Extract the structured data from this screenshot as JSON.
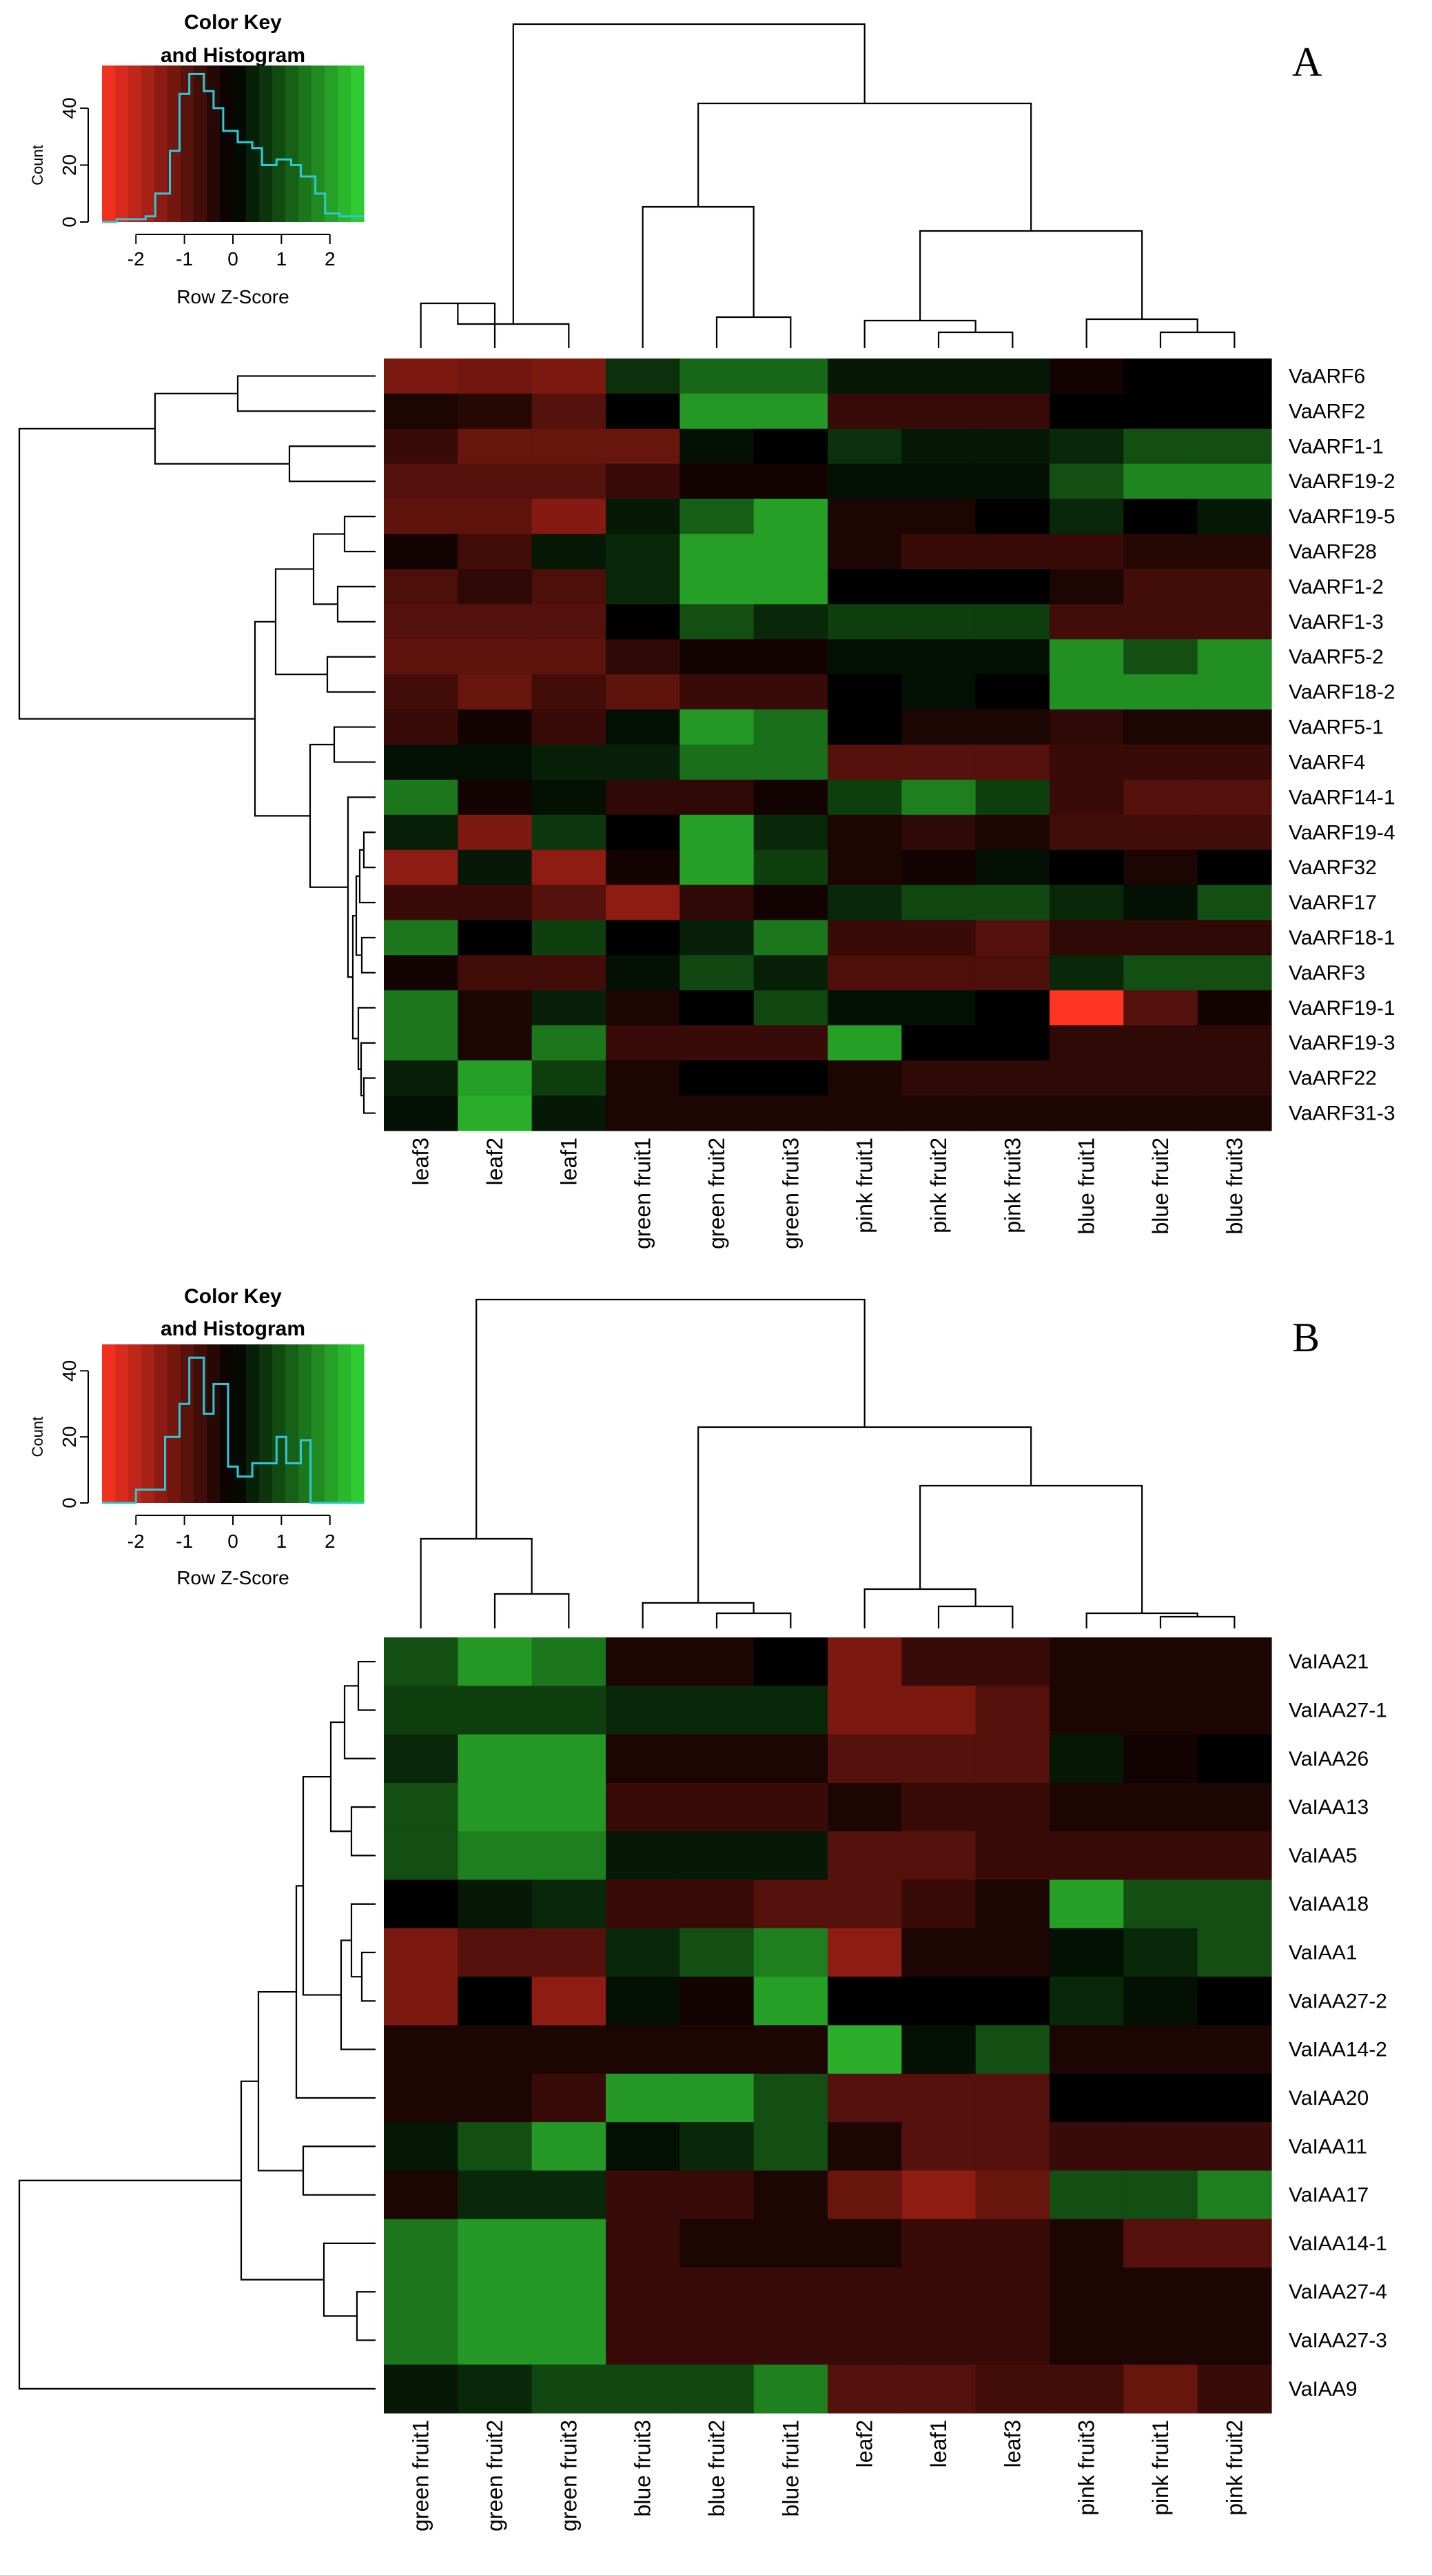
{
  "chart_data": [
    {
      "type": "heatmap",
      "panel": "A",
      "color_key": {
        "title_lines": [
          "Color Key",
          "and Histogram"
        ],
        "xlabel": "Row Z-Score",
        "ylabel": "Count",
        "x_ticks": [
          "-2",
          "-1",
          "0",
          "1",
          "2"
        ],
        "y_ticks": [
          "0",
          "20",
          "40"
        ],
        "x_range": [
          -2.7,
          2.7
        ],
        "y_range": [
          0,
          55
        ],
        "histogram": [
          [
            -2.7,
            0
          ],
          [
            -2.4,
            0
          ],
          [
            -2.4,
            1
          ],
          [
            -1.8,
            1
          ],
          [
            -1.8,
            2
          ],
          [
            -1.6,
            2
          ],
          [
            -1.6,
            10
          ],
          [
            -1.3,
            10
          ],
          [
            -1.3,
            25
          ],
          [
            -1.1,
            25
          ],
          [
            -1.1,
            45
          ],
          [
            -0.9,
            45
          ],
          [
            -0.9,
            52
          ],
          [
            -0.6,
            52
          ],
          [
            -0.6,
            46
          ],
          [
            -0.4,
            46
          ],
          [
            -0.4,
            40
          ],
          [
            -0.2,
            40
          ],
          [
            -0.2,
            32
          ],
          [
            0.1,
            32
          ],
          [
            0.1,
            28
          ],
          [
            0.4,
            28
          ],
          [
            0.4,
            26
          ],
          [
            0.6,
            26
          ],
          [
            0.6,
            20
          ],
          [
            0.9,
            20
          ],
          [
            0.9,
            22
          ],
          [
            1.2,
            22
          ],
          [
            1.2,
            20
          ],
          [
            1.4,
            20
          ],
          [
            1.4,
            16
          ],
          [
            1.7,
            16
          ],
          [
            1.7,
            10
          ],
          [
            1.9,
            10
          ],
          [
            1.9,
            3
          ],
          [
            2.2,
            3
          ],
          [
            2.2,
            2
          ],
          [
            2.7,
            2
          ]
        ]
      },
      "columns": [
        "leaf3",
        "leaf2",
        "leaf1",
        "green fruit1",
        "green fruit2",
        "green fruit3",
        "pink fruit1",
        "pink fruit2",
        "pink fruit3",
        "blue fruit1",
        "blue fruit2",
        "blue fruit3"
      ],
      "rows": [
        "VaARF6",
        "VaARF2",
        "VaARF1-1",
        "VaARF19-2",
        "VaARF19-5",
        "VaARF28",
        "VaARF1-2",
        "VaARF1-3",
        "VaARF5-2",
        "VaARF18-2",
        "VaARF5-1",
        "VaARF4",
        "VaARF14-1",
        "VaARF19-4",
        "VaARF32",
        "VaARF17",
        "VaARF18-1",
        "VaARF3",
        "VaARF19-1",
        "VaARF19-3",
        "VaARF22",
        "VaARF31-3"
      ],
      "values": [
        [
          -1.3,
          -1.2,
          -1.3,
          0.6,
          1.3,
          1.3,
          0.3,
          0.3,
          0.3,
          -0.2,
          0.0,
          0.0
        ],
        [
          -0.3,
          -0.4,
          -0.9,
          0.0,
          1.9,
          1.9,
          -0.6,
          -0.6,
          -0.6,
          0.0,
          0.0,
          0.0
        ],
        [
          -0.6,
          -1.1,
          -1.1,
          -1.1,
          0.2,
          0.0,
          0.6,
          0.3,
          0.3,
          0.5,
          1.0,
          1.0
        ],
        [
          -0.9,
          -0.9,
          -0.9,
          -0.6,
          -0.2,
          -0.2,
          0.2,
          0.2,
          0.2,
          1.0,
          1.7,
          1.7
        ],
        [
          -1.0,
          -1.0,
          -1.4,
          0.3,
          1.2,
          2.0,
          -0.3,
          -0.3,
          0.0,
          0.5,
          0.0,
          0.3
        ],
        [
          -0.2,
          -0.7,
          0.3,
          0.5,
          2.0,
          2.0,
          -0.3,
          -0.6,
          -0.6,
          -0.6,
          -0.4,
          -0.4
        ],
        [
          -0.8,
          -0.5,
          -0.8,
          0.5,
          2.0,
          2.0,
          0.0,
          0.0,
          0.0,
          -0.3,
          -0.7,
          -0.7
        ],
        [
          -0.9,
          -0.9,
          -0.9,
          0.0,
          1.0,
          0.5,
          0.8,
          0.8,
          0.8,
          -0.7,
          -0.7,
          -0.7
        ],
        [
          -1.0,
          -1.0,
          -1.0,
          -0.5,
          -0.2,
          -0.2,
          0.2,
          0.2,
          0.2,
          1.8,
          1.0,
          1.8
        ],
        [
          -0.7,
          -1.1,
          -0.7,
          -1.0,
          -0.6,
          -0.6,
          0.0,
          0.2,
          0.0,
          1.8,
          1.8,
          1.8
        ],
        [
          -0.6,
          -0.2,
          -0.6,
          0.2,
          1.9,
          1.4,
          0.0,
          -0.3,
          -0.3,
          -0.5,
          -0.3,
          -0.3
        ],
        [
          0.2,
          0.2,
          0.4,
          0.4,
          1.4,
          1.4,
          -0.9,
          -0.9,
          -0.9,
          -0.6,
          -0.6,
          -0.6
        ],
        [
          1.5,
          -0.2,
          0.2,
          -0.5,
          -0.5,
          -0.2,
          0.8,
          1.6,
          0.8,
          -0.6,
          -0.9,
          -0.9
        ],
        [
          0.4,
          -1.3,
          0.7,
          0.0,
          2.0,
          0.5,
          -0.3,
          -0.5,
          -0.3,
          -0.7,
          -0.7,
          -0.7
        ],
        [
          -1.5,
          0.3,
          -1.5,
          -0.2,
          2.0,
          0.8,
          -0.3,
          -0.2,
          0.2,
          0.0,
          -0.3,
          0.0
        ],
        [
          -0.6,
          -0.6,
          -0.9,
          -1.5,
          -0.5,
          -0.2,
          0.5,
          0.9,
          0.9,
          0.5,
          0.2,
          1.0
        ],
        [
          1.5,
          0.0,
          0.8,
          0.0,
          0.4,
          1.5,
          -0.6,
          -0.6,
          -0.9,
          -0.5,
          -0.5,
          -0.5
        ],
        [
          -0.2,
          -0.7,
          -0.7,
          0.2,
          0.9,
          0.4,
          -0.8,
          -0.8,
          -0.8,
          0.5,
          1.0,
          1.0
        ],
        [
          1.5,
          -0.3,
          0.4,
          -0.3,
          0.0,
          0.9,
          0.2,
          0.2,
          0.0,
          -2.7,
          -0.9,
          -0.2
        ],
        [
          1.5,
          -0.3,
          1.5,
          -0.6,
          -0.6,
          -0.6,
          2.0,
          0.0,
          0.0,
          -0.5,
          -0.5,
          -0.5
        ],
        [
          0.4,
          2.0,
          0.8,
          -0.3,
          0.0,
          0.0,
          -0.3,
          -0.5,
          -0.5,
          -0.5,
          -0.5,
          -0.5
        ],
        [
          0.2,
          2.2,
          0.3,
          -0.3,
          -0.3,
          -0.3,
          -0.3,
          -0.3,
          -0.3,
          -0.3,
          -0.3,
          -0.3
        ]
      ],
      "color_scale": {
        "low": "#ff3322",
        "mid": "#000000",
        "high": "#33d633",
        "range": [
          -2.7,
          2.7
        ]
      }
    },
    {
      "type": "heatmap",
      "panel": "B",
      "color_key": {
        "title_lines": [
          "Color Key",
          "and Histogram"
        ],
        "xlabel": "Row Z-Score",
        "ylabel": "Count",
        "x_ticks": [
          "-2",
          "-1",
          "0",
          "1",
          "2"
        ],
        "y_ticks": [
          "0",
          "20",
          "40"
        ],
        "x_range": [
          -2.7,
          2.7
        ],
        "y_range": [
          0,
          48
        ],
        "histogram": [
          [
            -2.7,
            0
          ],
          [
            -2.0,
            0
          ],
          [
            -2.0,
            4
          ],
          [
            -1.4,
            4
          ],
          [
            -1.4,
            20
          ],
          [
            -1.1,
            20
          ],
          [
            -1.1,
            30
          ],
          [
            -0.9,
            30
          ],
          [
            -0.9,
            44
          ],
          [
            -0.6,
            44
          ],
          [
            -0.6,
            27
          ],
          [
            -0.4,
            27
          ],
          [
            -0.4,
            36
          ],
          [
            -0.1,
            36
          ],
          [
            -0.1,
            11
          ],
          [
            0.1,
            11
          ],
          [
            0.1,
            8
          ],
          [
            0.4,
            8
          ],
          [
            0.4,
            12
          ],
          [
            0.9,
            12
          ],
          [
            0.9,
            20
          ],
          [
            1.1,
            20
          ],
          [
            1.1,
            12
          ],
          [
            1.4,
            12
          ],
          [
            1.4,
            19
          ],
          [
            1.6,
            19
          ],
          [
            1.6,
            0
          ],
          [
            2.7,
            0
          ]
        ]
      },
      "columns": [
        "green fruit1",
        "green fruit2",
        "green fruit3",
        "blue fruit3",
        "blue fruit2",
        "blue fruit1",
        "leaf2",
        "leaf1",
        "leaf3",
        "pink fruit3",
        "pink fruit1",
        "pink fruit2"
      ],
      "rows": [
        "VaIAA21",
        "VaIAA27-1",
        "VaIAA26",
        "VaIAA13",
        "VaIAA5",
        "VaIAA18",
        "VaIAA1",
        "VaIAA27-2",
        "VaIAA14-2",
        "VaIAA20",
        "VaIAA11",
        "VaIAA17",
        "VaIAA14-1",
        "VaIAA27-4",
        "VaIAA27-3",
        "VaIAA9"
      ],
      "values": [
        [
          1.0,
          1.9,
          1.5,
          -0.3,
          -0.3,
          0.0,
          -1.3,
          -0.6,
          -0.6,
          -0.3,
          -0.3,
          -0.3
        ],
        [
          0.8,
          0.8,
          0.8,
          0.5,
          0.5,
          0.5,
          -1.3,
          -1.3,
          -0.9,
          -0.3,
          -0.3,
          -0.3
        ],
        [
          0.5,
          1.9,
          1.9,
          -0.3,
          -0.3,
          -0.3,
          -0.9,
          -0.9,
          -0.9,
          0.3,
          -0.2,
          0.0
        ],
        [
          1.0,
          1.9,
          1.9,
          -0.6,
          -0.6,
          -0.6,
          -0.3,
          -0.6,
          -0.6,
          -0.3,
          -0.3,
          -0.3
        ],
        [
          1.0,
          1.6,
          1.6,
          0.3,
          0.3,
          0.3,
          -0.9,
          -0.9,
          -0.6,
          -0.6,
          -0.6,
          -0.6
        ],
        [
          0.0,
          0.3,
          0.5,
          -0.6,
          -0.6,
          -0.9,
          -0.9,
          -0.6,
          -0.3,
          2.0,
          1.0,
          1.0
        ],
        [
          -1.3,
          -0.9,
          -0.9,
          0.5,
          1.0,
          1.6,
          -1.5,
          -0.3,
          -0.3,
          0.2,
          0.5,
          1.0
        ],
        [
          -1.3,
          0.0,
          -1.5,
          0.2,
          -0.2,
          2.0,
          0.0,
          0.0,
          0.0,
          0.5,
          0.2,
          0.0
        ],
        [
          -0.3,
          -0.3,
          -0.3,
          -0.3,
          -0.3,
          -0.3,
          2.2,
          0.2,
          1.0,
          -0.3,
          -0.3,
          -0.3
        ],
        [
          -0.3,
          -0.3,
          -0.6,
          1.9,
          1.9,
          1.0,
          -0.9,
          -0.9,
          -0.9,
          0.0,
          0.0,
          0.0
        ],
        [
          0.3,
          1.0,
          1.9,
          0.2,
          0.5,
          1.0,
          -0.3,
          -0.9,
          -0.9,
          -0.6,
          -0.6,
          -0.6
        ],
        [
          -0.3,
          0.5,
          0.5,
          -0.6,
          -0.6,
          -0.3,
          -1.1,
          -1.5,
          -1.1,
          1.0,
          1.0,
          1.6
        ],
        [
          1.5,
          1.9,
          1.9,
          -0.6,
          -0.3,
          -0.3,
          -0.3,
          -0.6,
          -0.6,
          -0.3,
          -0.9,
          -0.9
        ],
        [
          1.5,
          1.9,
          1.9,
          -0.6,
          -0.6,
          -0.6,
          -0.6,
          -0.6,
          -0.6,
          -0.3,
          -0.3,
          -0.3
        ],
        [
          1.5,
          1.9,
          1.9,
          -0.6,
          -0.6,
          -0.6,
          -0.6,
          -0.6,
          -0.6,
          -0.3,
          -0.3,
          -0.3
        ],
        [
          0.3,
          0.5,
          0.9,
          0.9,
          0.9,
          1.6,
          -0.9,
          -0.9,
          -0.7,
          -0.7,
          -1.1,
          -0.6
        ]
      ],
      "color_scale": {
        "low": "#ff3322",
        "mid": "#000000",
        "high": "#33d633",
        "range": [
          -2.7,
          2.7
        ]
      }
    }
  ]
}
